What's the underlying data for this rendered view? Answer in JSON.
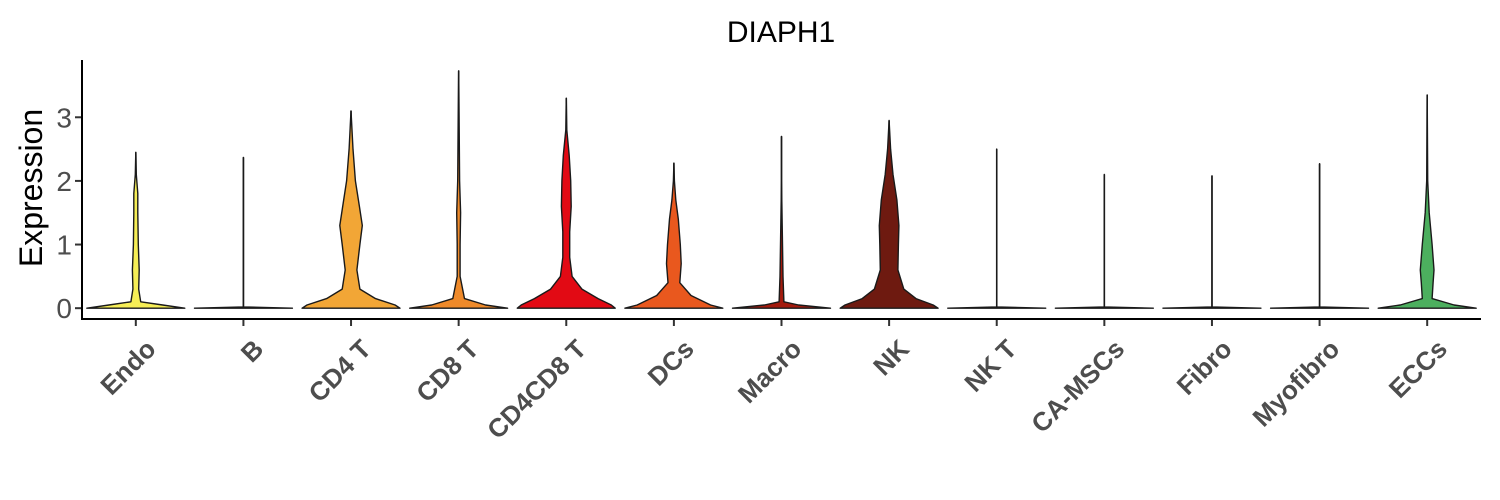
{
  "chart_data": {
    "type": "violin",
    "title": "DIAPH1",
    "xlabel": "",
    "ylabel": "Expression",
    "ylim": [
      -0.17,
      3.9
    ],
    "yticks": [
      0,
      1,
      2,
      3
    ],
    "grid": false,
    "legend": "none",
    "categories": [
      "Endo",
      "B",
      "CD4 T",
      "CD8 T",
      "CD4CD8 T",
      "DCs",
      "Macro",
      "NK",
      "NK T",
      "CA-MSCs",
      "Fibro",
      "Myofibro",
      "ECCs"
    ],
    "series": [
      {
        "category": "Endo",
        "color": "#f6ee56",
        "max": 2.45,
        "density": [
          [
            0,
            1.0
          ],
          [
            0.05,
            0.55
          ],
          [
            0.1,
            0.1
          ],
          [
            0.3,
            0.06
          ],
          [
            0.6,
            0.07
          ],
          [
            1.0,
            0.05
          ],
          [
            1.5,
            0.04
          ],
          [
            1.8,
            0.04
          ],
          [
            2.1,
            0.01
          ],
          [
            2.45,
            0.0
          ]
        ]
      },
      {
        "category": "B",
        "color": "#f3d040",
        "max": 2.37,
        "density": [
          [
            0,
            1.0
          ],
          [
            0.02,
            0.0
          ],
          [
            2.37,
            0.0
          ]
        ]
      },
      {
        "category": "CD4 T",
        "color": "#f2a636",
        "max": 3.1,
        "density": [
          [
            0,
            1.0
          ],
          [
            0.05,
            0.9
          ],
          [
            0.15,
            0.5
          ],
          [
            0.3,
            0.18
          ],
          [
            0.6,
            0.12
          ],
          [
            1.0,
            0.18
          ],
          [
            1.3,
            0.23
          ],
          [
            1.6,
            0.17
          ],
          [
            2.0,
            0.09
          ],
          [
            2.5,
            0.04
          ],
          [
            3.1,
            0.0
          ]
        ]
      },
      {
        "category": "CD8 T",
        "color": "#ef8a2a",
        "max": 3.73,
        "density": [
          [
            0,
            1.0
          ],
          [
            0.05,
            0.55
          ],
          [
            0.15,
            0.12
          ],
          [
            0.5,
            0.03
          ],
          [
            1.0,
            0.03
          ],
          [
            1.5,
            0.04
          ],
          [
            2.0,
            0.02
          ],
          [
            3.0,
            0.01
          ],
          [
            3.73,
            0.0
          ]
        ]
      },
      {
        "category": "CD4CD8 T",
        "color": "#e20a14",
        "max": 3.3,
        "density": [
          [
            0,
            1.0
          ],
          [
            0.05,
            0.92
          ],
          [
            0.15,
            0.65
          ],
          [
            0.3,
            0.32
          ],
          [
            0.5,
            0.12
          ],
          [
            0.8,
            0.07
          ],
          [
            1.2,
            0.07
          ],
          [
            1.6,
            0.1
          ],
          [
            2.0,
            0.09
          ],
          [
            2.4,
            0.06
          ],
          [
            2.8,
            0.01
          ],
          [
            3.3,
            0.0
          ]
        ]
      },
      {
        "category": "DCs",
        "color": "#e9581e",
        "max": 2.28,
        "density": [
          [
            0,
            1.0
          ],
          [
            0.05,
            0.75
          ],
          [
            0.2,
            0.35
          ],
          [
            0.4,
            0.12
          ],
          [
            0.7,
            0.15
          ],
          [
            1.0,
            0.13
          ],
          [
            1.4,
            0.09
          ],
          [
            1.7,
            0.04
          ],
          [
            2.0,
            0.01
          ],
          [
            2.28,
            0.0
          ]
        ]
      },
      {
        "category": "Macro",
        "color": "#a31a0d",
        "max": 2.7,
        "density": [
          [
            0,
            1.0
          ],
          [
            0.05,
            0.35
          ],
          [
            0.1,
            0.05
          ],
          [
            0.5,
            0.03
          ],
          [
            1.0,
            0.02
          ],
          [
            2.0,
            0.0
          ],
          [
            2.7,
            0.0
          ]
        ]
      },
      {
        "category": "NK",
        "color": "#6e1a10",
        "max": 2.95,
        "density": [
          [
            0,
            1.0
          ],
          [
            0.05,
            0.9
          ],
          [
            0.15,
            0.55
          ],
          [
            0.3,
            0.3
          ],
          [
            0.6,
            0.18
          ],
          [
            1.0,
            0.19
          ],
          [
            1.3,
            0.2
          ],
          [
            1.7,
            0.16
          ],
          [
            2.1,
            0.08
          ],
          [
            2.5,
            0.03
          ],
          [
            2.95,
            0.0
          ]
        ]
      },
      {
        "category": "NK T",
        "color": "#e8e2d4",
        "max": 2.5,
        "density": [
          [
            0,
            1.0
          ],
          [
            0.02,
            0.0
          ],
          [
            2.5,
            0.0
          ]
        ]
      },
      {
        "category": "CA-MSCs",
        "color": "#d4e8dc",
        "max": 2.1,
        "density": [
          [
            0,
            1.0
          ],
          [
            0.02,
            0.0
          ],
          [
            2.1,
            0.0
          ]
        ]
      },
      {
        "category": "Fibro",
        "color": "#c4e0cc",
        "max": 2.08,
        "density": [
          [
            0,
            1.0
          ],
          [
            0.02,
            0.0
          ],
          [
            2.08,
            0.0
          ]
        ]
      },
      {
        "category": "Myofibro",
        "color": "#b4d8bc",
        "max": 2.27,
        "density": [
          [
            0,
            1.0
          ],
          [
            0.02,
            0.0
          ],
          [
            2.27,
            0.0
          ]
        ]
      },
      {
        "category": "ECCs",
        "color": "#4caf5e",
        "max": 3.35,
        "density": [
          [
            0,
            1.0
          ],
          [
            0.05,
            0.55
          ],
          [
            0.15,
            0.1
          ],
          [
            0.4,
            0.12
          ],
          [
            0.6,
            0.14
          ],
          [
            1.0,
            0.1
          ],
          [
            1.5,
            0.04
          ],
          [
            2.0,
            0.01
          ],
          [
            3.35,
            0.0
          ]
        ]
      }
    ]
  }
}
